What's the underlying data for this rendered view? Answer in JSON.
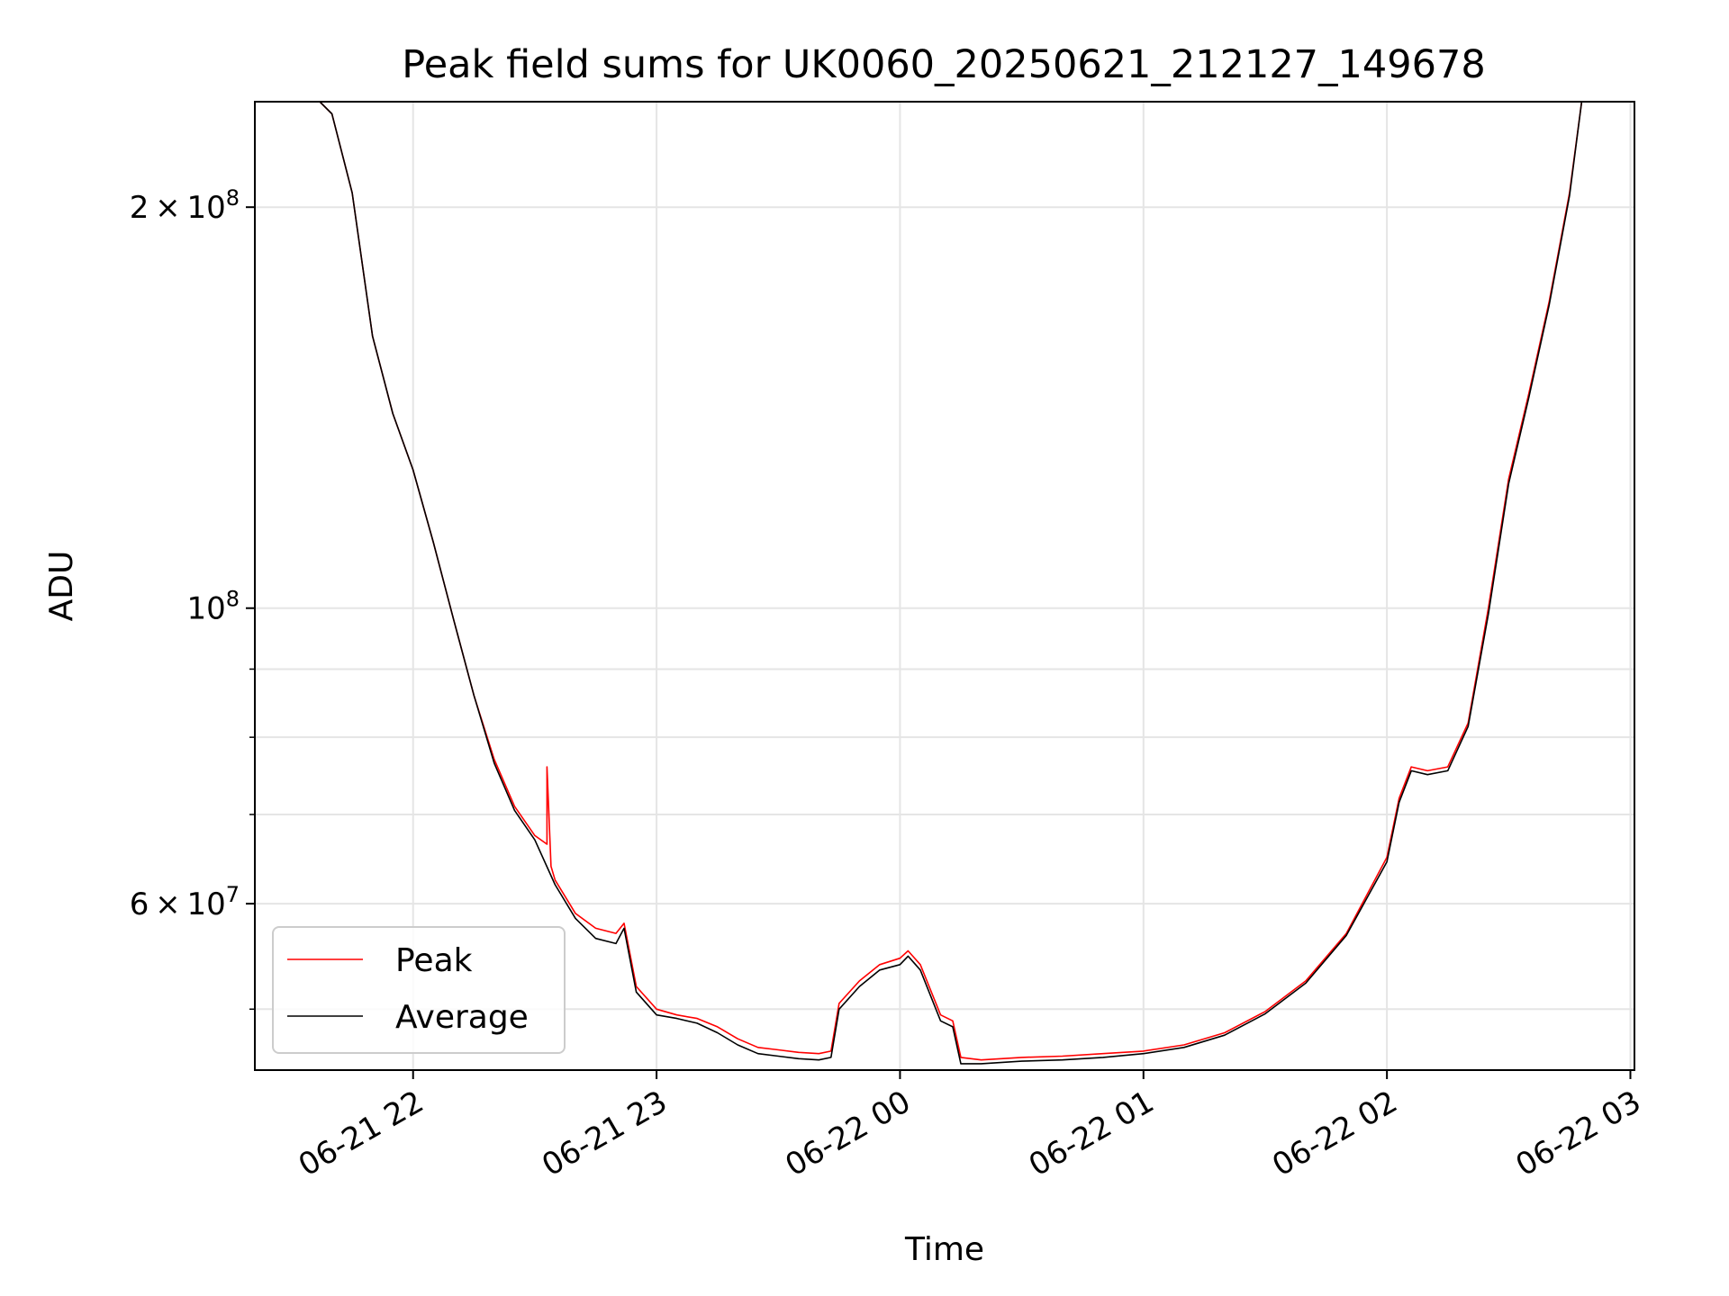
{
  "chart_data": {
    "type": "line",
    "title": "Peak field sums for UK0060_20250621_212127_149678",
    "xlabel": "Time",
    "ylabel": "ADU",
    "yscale": "log",
    "grid": true,
    "legend_position": "lower-left",
    "xlim": [
      "2025-06-21 21:21",
      "2025-06-22 03:01"
    ],
    "ylim": [
      45000000,
      240000000
    ],
    "x_ticks": [
      {
        "value": "2025-06-21 22:00",
        "label": "06-21 22"
      },
      {
        "value": "2025-06-21 23:00",
        "label": "06-21 23"
      },
      {
        "value": "2025-06-22 00:00",
        "label": "06-22 00"
      },
      {
        "value": "2025-06-22 01:00",
        "label": "06-22 01"
      },
      {
        "value": "2025-06-22 02:00",
        "label": "06-22 02"
      },
      {
        "value": "2025-06-22 03:00",
        "label": "06-22 03"
      }
    ],
    "y_major_ticks": [
      {
        "value": 100000000,
        "base": "10",
        "exp": "8"
      },
      {
        "value": 200000000,
        "mant": "2",
        "base": "10",
        "exp": "8"
      },
      {
        "value": 60000000,
        "mant": "6",
        "base": "10",
        "exp": "7"
      }
    ],
    "y_minor_ticks": [
      50000000,
      70000000,
      80000000,
      90000000
    ],
    "series": [
      {
        "name": "Peak",
        "color": "#ff0000",
        "x": [
          "2025-06-21 21:37",
          "2025-06-21 21:40",
          "2025-06-21 21:45",
          "2025-06-21 21:50",
          "2025-06-21 21:55",
          "2025-06-21 22:00",
          "2025-06-21 22:05",
          "2025-06-21 22:10",
          "2025-06-21 22:15",
          "2025-06-21 22:20",
          "2025-06-21 22:25",
          "2025-06-21 22:30",
          "2025-06-21 22:33",
          "2025-06-21 22:33",
          "2025-06-21 22:34",
          "2025-06-21 22:35",
          "2025-06-21 22:40",
          "2025-06-21 22:45",
          "2025-06-21 22:50",
          "2025-06-21 22:52",
          "2025-06-21 22:55",
          "2025-06-21 23:00",
          "2025-06-21 23:05",
          "2025-06-21 23:10",
          "2025-06-21 23:15",
          "2025-06-21 23:20",
          "2025-06-21 23:25",
          "2025-06-21 23:30",
          "2025-06-21 23:35",
          "2025-06-21 23:40",
          "2025-06-21 23:43",
          "2025-06-21 23:45",
          "2025-06-21 23:50",
          "2025-06-21 23:55",
          "2025-06-22 00:00",
          "2025-06-22 00:02",
          "2025-06-22 00:05",
          "2025-06-22 00:10",
          "2025-06-22 00:13",
          "2025-06-22 00:15",
          "2025-06-22 00:20",
          "2025-06-22 00:30",
          "2025-06-22 00:40",
          "2025-06-22 00:50",
          "2025-06-22 01:00",
          "2025-06-22 01:10",
          "2025-06-22 01:20",
          "2025-06-22 01:30",
          "2025-06-22 01:40",
          "2025-06-22 01:50",
          "2025-06-22 02:00",
          "2025-06-22 02:03",
          "2025-06-22 02:06",
          "2025-06-22 02:10",
          "2025-06-22 02:15",
          "2025-06-22 02:20",
          "2025-06-22 02:25",
          "2025-06-22 02:30",
          "2025-06-22 02:35",
          "2025-06-22 02:40",
          "2025-06-22 02:45",
          "2025-06-22 02:48"
        ],
        "y": [
          240000000,
          235000000,
          205000000,
          160000000,
          140000000,
          127000000,
          112000000,
          98000000,
          86000000,
          77000000,
          71000000,
          67500000,
          66500000,
          76000000,
          64000000,
          62500000,
          59000000,
          57500000,
          57000000,
          58000000,
          52000000,
          50000000,
          49500000,
          49200000,
          48500000,
          47500000,
          46800000,
          46600000,
          46400000,
          46300000,
          46500000,
          50500000,
          52500000,
          54000000,
          54600000,
          55300000,
          54000000,
          49500000,
          49000000,
          46000000,
          45800000,
          46000000,
          46100000,
          46300000,
          46500000,
          47000000,
          48000000,
          49800000,
          52500000,
          57000000,
          65000000,
          72000000,
          76000000,
          75500000,
          76000000,
          82000000,
          100000000,
          125000000,
          145000000,
          170000000,
          205000000,
          240000000
        ]
      },
      {
        "name": "Average",
        "color": "#000000",
        "x": [
          "2025-06-21 21:37",
          "2025-06-21 21:40",
          "2025-06-21 21:45",
          "2025-06-21 21:50",
          "2025-06-21 21:55",
          "2025-06-21 22:00",
          "2025-06-21 22:05",
          "2025-06-21 22:10",
          "2025-06-21 22:15",
          "2025-06-21 22:20",
          "2025-06-21 22:25",
          "2025-06-21 22:30",
          "2025-06-21 22:35",
          "2025-06-21 22:40",
          "2025-06-21 22:45",
          "2025-06-21 22:50",
          "2025-06-21 22:52",
          "2025-06-21 22:55",
          "2025-06-21 23:00",
          "2025-06-21 23:05",
          "2025-06-21 23:10",
          "2025-06-21 23:15",
          "2025-06-21 23:20",
          "2025-06-21 23:25",
          "2025-06-21 23:30",
          "2025-06-21 23:35",
          "2025-06-21 23:40",
          "2025-06-21 23:43",
          "2025-06-21 23:45",
          "2025-06-21 23:50",
          "2025-06-21 23:55",
          "2025-06-22 00:00",
          "2025-06-22 00:02",
          "2025-06-22 00:05",
          "2025-06-22 00:10",
          "2025-06-22 00:13",
          "2025-06-22 00:15",
          "2025-06-22 00:20",
          "2025-06-22 00:30",
          "2025-06-22 00:40",
          "2025-06-22 00:50",
          "2025-06-22 01:00",
          "2025-06-22 01:10",
          "2025-06-22 01:20",
          "2025-06-22 01:30",
          "2025-06-22 01:40",
          "2025-06-22 01:50",
          "2025-06-22 02:00",
          "2025-06-22 02:03",
          "2025-06-22 02:06",
          "2025-06-22 02:10",
          "2025-06-22 02:15",
          "2025-06-22 02:20",
          "2025-06-22 02:25",
          "2025-06-22 02:30",
          "2025-06-22 02:35",
          "2025-06-22 02:40",
          "2025-06-22 02:45",
          "2025-06-22 02:48"
        ],
        "y": [
          240000000,
          235000000,
          205000000,
          160000000,
          140000000,
          127000000,
          112000000,
          98000000,
          86000000,
          76500000,
          70500000,
          67000000,
          62000000,
          58500000,
          56500000,
          56000000,
          57500000,
          51500000,
          49500000,
          49200000,
          48800000,
          48000000,
          47000000,
          46300000,
          46100000,
          45900000,
          45800000,
          46000000,
          50000000,
          52000000,
          53500000,
          54000000,
          54800000,
          53500000,
          49000000,
          48500000,
          45500000,
          45500000,
          45700000,
          45800000,
          46000000,
          46300000,
          46800000,
          47800000,
          49600000,
          52300000,
          56800000,
          64500000,
          71500000,
          75500000,
          75000000,
          75500000,
          81500000,
          99000000,
          124000000,
          144000000,
          169000000,
          204000000,
          240000000
        ]
      }
    ]
  }
}
